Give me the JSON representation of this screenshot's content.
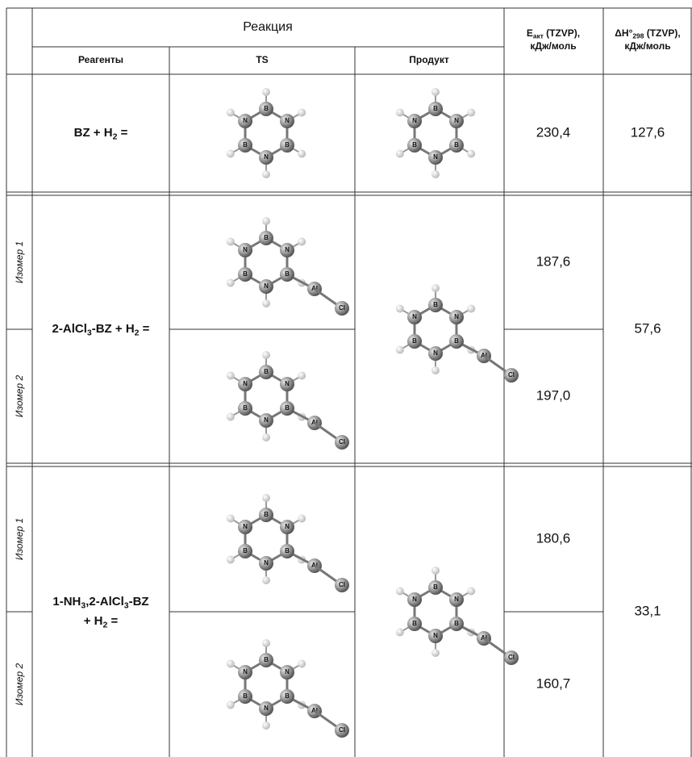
{
  "header": {
    "reaction": "Реакция",
    "reagents": "Реагенты",
    "ts": "TS",
    "product": "Продукт",
    "e_act": [
      [
        "E",
        "акт",
        " (TZVP),"
      ],
      [
        "кДж/моль"
      ]
    ],
    "dh": [
      [
        "ΔH°",
        "298",
        " (TZVP),"
      ],
      [
        "кДж/моль"
      ]
    ]
  },
  "rows": [
    {
      "reactant": [
        [
          "BZ + H",
          "2",
          " ="
        ]
      ],
      "ts": [
        {
          "atoms": [
            "B",
            "N",
            "B",
            "N",
            "B",
            "N"
          ],
          "subs": []
        }
      ],
      "product": {
        "atoms": [
          "B",
          "N",
          "B",
          "N",
          "B",
          "N"
        ],
        "subs": []
      },
      "e": [
        "230,4"
      ],
      "dh": "127,6"
    },
    {
      "reactant": [
        [
          "2-AlCl",
          "3",
          "-BZ + H",
          "2",
          " ="
        ]
      ],
      "isomers": [
        "Изомер 1",
        "Изомер 2"
      ],
      "ts": [
        {
          "atoms": [
            "B",
            "N",
            "B",
            "N",
            "B",
            "N"
          ],
          "subs": [
            "Al",
            "Cl"
          ]
        },
        {
          "atoms": [
            "B",
            "N",
            "B",
            "N",
            "B",
            "N"
          ],
          "subs": [
            "Al",
            "Cl"
          ]
        }
      ],
      "product": {
        "atoms": [
          "B",
          "N",
          "B",
          "N",
          "B",
          "N"
        ],
        "subs": [
          "Al",
          "Cl"
        ]
      },
      "e": [
        "187,6",
        "197,0"
      ],
      "dh": "57,6"
    },
    {
      "reactant": [
        [
          "1-NH",
          "3",
          ",2-AlCl",
          "3",
          "-BZ"
        ],
        [
          "+ H",
          "2",
          " ="
        ]
      ],
      "isomers": [
        "Изомер 1",
        "Изомер 2"
      ],
      "ts": [
        {
          "atoms": [
            "B",
            "N",
            "B",
            "N",
            "B",
            "N"
          ],
          "subs": [
            "Al",
            "Cl"
          ]
        },
        {
          "atoms": [
            "B",
            "N",
            "B",
            "N",
            "B",
            "N"
          ],
          "subs": [
            "Al",
            "Cl"
          ]
        }
      ],
      "product": {
        "atoms": [
          "B",
          "N",
          "B",
          "N",
          "B",
          "N"
        ],
        "subs": [
          "Al",
          "Cl"
        ]
      },
      "e": [
        "180,6",
        "160,7"
      ],
      "dh": "33,1"
    }
  ]
}
